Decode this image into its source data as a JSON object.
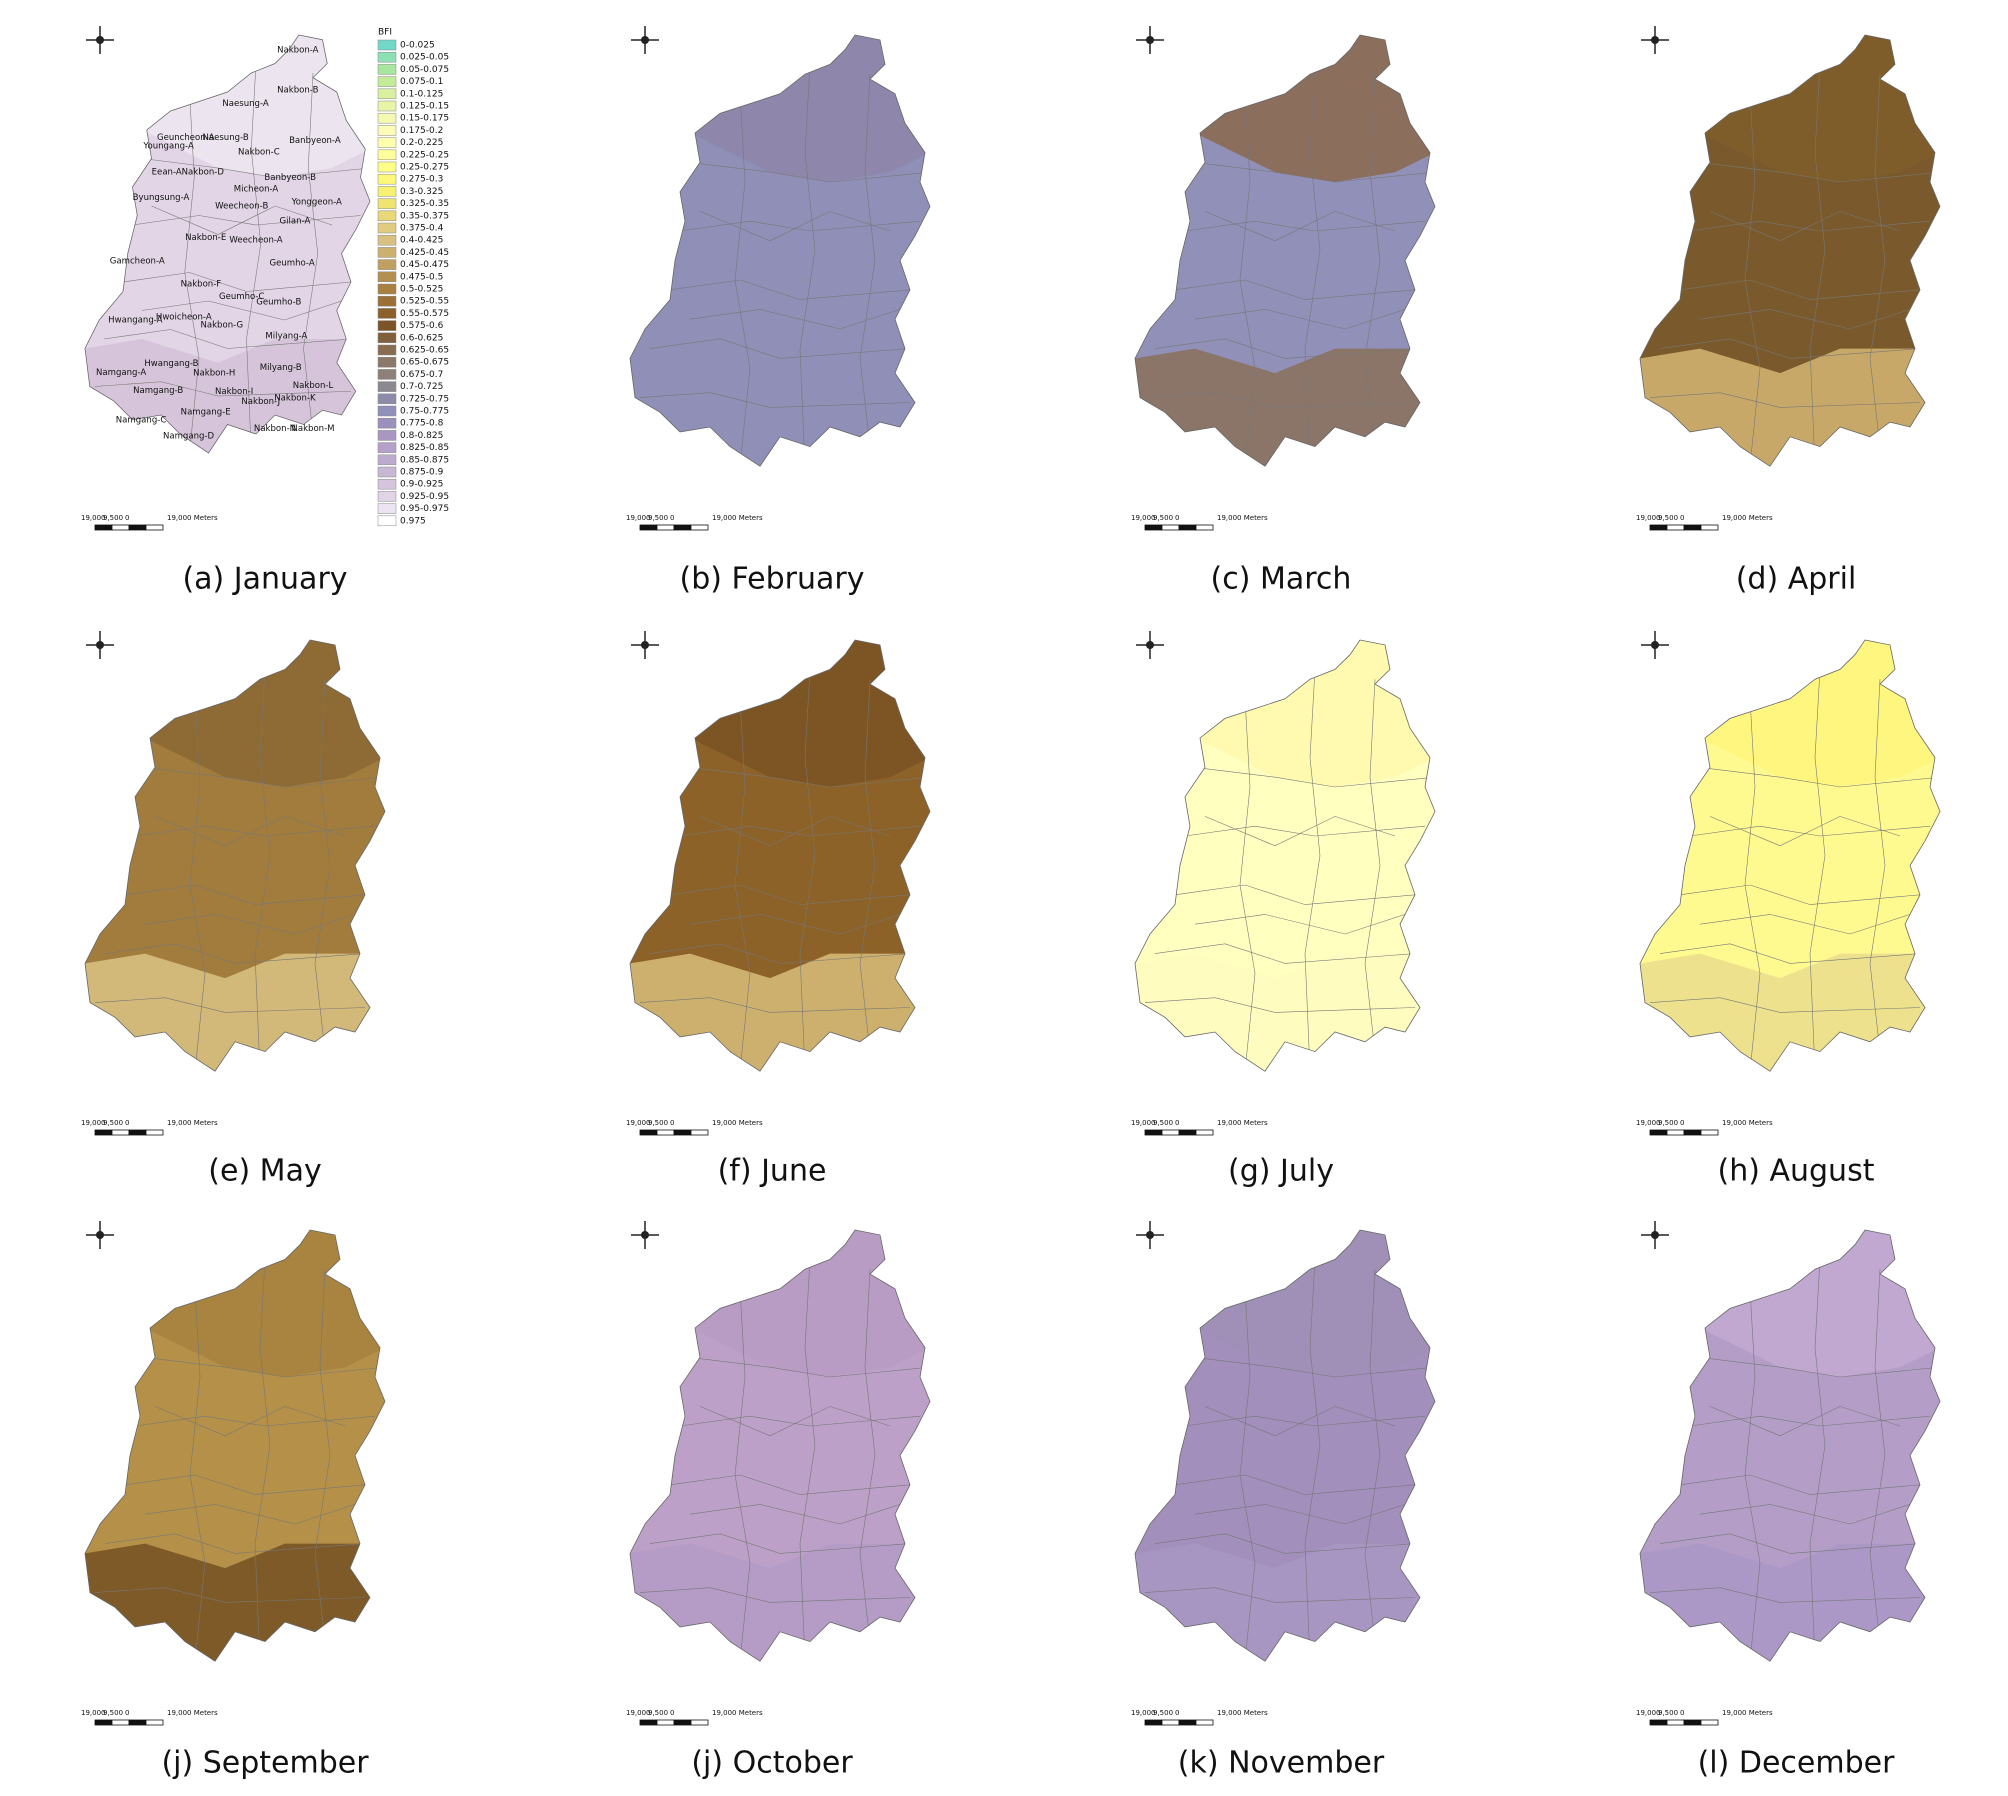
{
  "panels": [
    {
      "caption": "(a) January",
      "fill": "#e2d5e6",
      "north": "#ece4ee",
      "south": "#d6c4da"
    },
    {
      "caption": "(b) February",
      "fill": "#8f8fb7",
      "north": "#8e87ab",
      "south": "#8f8fb7"
    },
    {
      "caption": "(c) March",
      "fill": "#9090b8",
      "north": "#8b6e5c",
      "south": "#8b7568"
    },
    {
      "caption": "(d) April",
      "fill": "#7a5a2c",
      "north": "#7e5d2a",
      "south": "#c7a868"
    },
    {
      "caption": "(e) May",
      "fill": "#a27c3c",
      "north": "#8e6a34",
      "south": "#d2b879"
    },
    {
      "caption": "(f) June",
      "fill": "#8c6228",
      "north": "#7d5524",
      "south": "#cdb06e"
    },
    {
      "caption": "(g) July",
      "fill": "#ffffc0",
      "north": "#fffab0",
      "south": "#fffcc0"
    },
    {
      "caption": "(h) August",
      "fill": "#fffa90",
      "north": "#fff680",
      "south": "#eee18e"
    },
    {
      "caption": "(j) September",
      "fill": "#b49048",
      "north": "#a88440",
      "south": "#7d5a28"
    },
    {
      "caption": "(j) October",
      "fill": "#bca0c8",
      "north": "#b89cc4",
      "south": "#b49cc6"
    },
    {
      "caption": "(k) November",
      "fill": "#a28fbc",
      "north": "#a090b8",
      "south": "#a896c2"
    },
    {
      "caption": "(l) December",
      "fill": "#b49ec8",
      "north": "#c0a8d0",
      "south": "#ab98c6"
    }
  ],
  "legend": {
    "title": "BFI",
    "items": [
      {
        "label": "0-0.025",
        "color": "#6fd8c8"
      },
      {
        "label": "0.025-0.05",
        "color": "#8ce0b4"
      },
      {
        "label": "0.05-0.075",
        "color": "#a8e6a0"
      },
      {
        "label": "0.075-0.1",
        "color": "#c4ec98"
      },
      {
        "label": "0.1-0.125",
        "color": "#d8f0a0"
      },
      {
        "label": "0.125-0.15",
        "color": "#e8f4a8"
      },
      {
        "label": "0.15-0.175",
        "color": "#f4f8b0"
      },
      {
        "label": "0.175-0.2",
        "color": "#fcfcb8"
      },
      {
        "label": "0.2-0.225",
        "color": "#ffffb0"
      },
      {
        "label": "0.225-0.25",
        "color": "#ffff9c"
      },
      {
        "label": "0.25-0.275",
        "color": "#ffff88"
      },
      {
        "label": "0.275-0.3",
        "color": "#fcf878"
      },
      {
        "label": "0.3-0.325",
        "color": "#f8f070"
      },
      {
        "label": "0.325-0.35",
        "color": "#f0e470"
      },
      {
        "label": "0.35-0.375",
        "color": "#e8d878"
      },
      {
        "label": "0.375-0.4",
        "color": "#e0cc80"
      },
      {
        "label": "0.4-0.425",
        "color": "#d8c080"
      },
      {
        "label": "0.425-0.45",
        "color": "#ccb070"
      },
      {
        "label": "0.45-0.475",
        "color": "#c0a060"
      },
      {
        "label": "0.475-0.5",
        "color": "#b49050"
      },
      {
        "label": "0.5-0.525",
        "color": "#a88040"
      },
      {
        "label": "0.525-0.55",
        "color": "#9c7034"
      },
      {
        "label": "0.55-0.575",
        "color": "#8c602c"
      },
      {
        "label": "0.575-0.6",
        "color": "#7c5428"
      },
      {
        "label": "0.6-0.625",
        "color": "#80603c"
      },
      {
        "label": "0.625-0.65",
        "color": "#886c50"
      },
      {
        "label": "0.65-0.675",
        "color": "#8c7868"
      },
      {
        "label": "0.675-0.7",
        "color": "#8c8078"
      },
      {
        "label": "0.7-0.725",
        "color": "#8c8890"
      },
      {
        "label": "0.725-0.75",
        "color": "#8c8ca8"
      },
      {
        "label": "0.75-0.775",
        "color": "#9090b8"
      },
      {
        "label": "0.775-0.8",
        "color": "#9c90bc"
      },
      {
        "label": "0.8-0.825",
        "color": "#a898c0"
      },
      {
        "label": "0.825-0.85",
        "color": "#b4a0c8"
      },
      {
        "label": "0.85-0.875",
        "color": "#bcaccc"
      },
      {
        "label": "0.875-0.9",
        "color": "#c8b8d4"
      },
      {
        "label": "0.9-0.925",
        "color": "#d4c4dc"
      },
      {
        "label": "0.925-0.95",
        "color": "#e0d4e6"
      },
      {
        "label": "0.95-0.975",
        "color": "#ece4f0"
      },
      {
        "label": "0.975",
        "color": "#ffffff"
      }
    ]
  },
  "regions": [
    "Nakbon-A",
    "Nakbon-B",
    "Naesung-A",
    "Geuncheon-A",
    "Naesung-B",
    "Youngang-A",
    "Nakbon-C",
    "Banbyeon-A",
    "Eean-A",
    "Nakbon-D",
    "Banbyeon-B",
    "Micheon-A",
    "Byungsung-A",
    "Weecheon-B",
    "Yonggeon-A",
    "Gilan-A",
    "Nakbon-E",
    "Weecheon-A",
    "Gamcheon-A",
    "Geumho-A",
    "Nakbon-F",
    "Geumho-C",
    "Geumho-B",
    "Hwoicheon-A",
    "Hwangang-A",
    "Nakbon-G",
    "Milyang-A",
    "Hwangang-B",
    "Nakbon-H",
    "Milyang-B",
    "Namgang-A",
    "Namgang-B",
    "Nakbon-I",
    "Nakbon-L",
    "Nakbon-K",
    "Nakbon-J",
    "Namgang-C",
    "Namgang-E",
    "Nakbon-N",
    "Nakbon-M",
    "Namgang-D"
  ],
  "scale_bar": {
    "labels": [
      "19,000",
      "9,500",
      "0",
      "19,000 Meters"
    ]
  }
}
